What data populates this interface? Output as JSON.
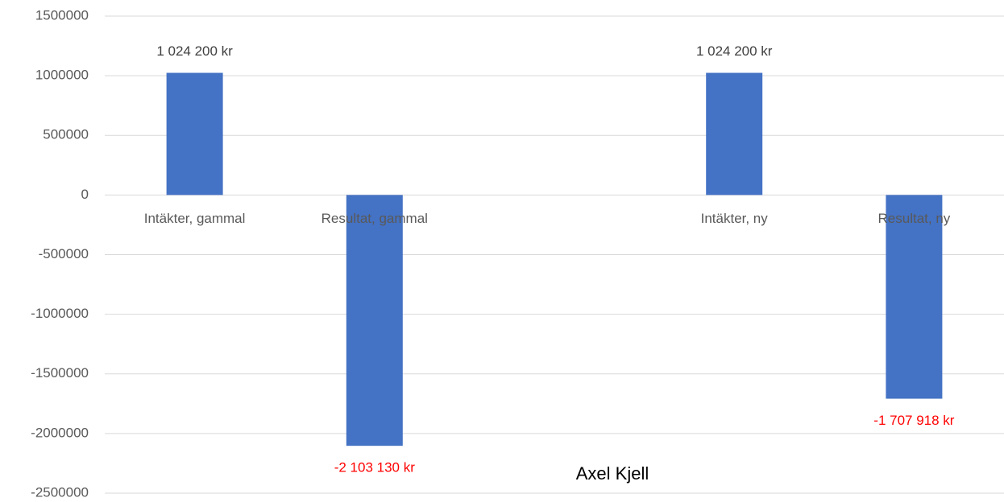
{
  "chart_data": {
    "type": "bar",
    "x_label": "Axel Kjell",
    "categories": [
      "Intäkter, gammal",
      "Resultat, gammal",
      null,
      "Intäkter, ny",
      "Resultat, ny"
    ],
    "values": [
      1024200,
      -2103130,
      null,
      1024200,
      -1707918
    ],
    "value_labels": [
      "1 024 200 kr",
      "-2 103 130 kr",
      null,
      "1 024 200 kr",
      "-1 707 918 kr"
    ],
    "color": "#4472c4",
    "label_color": "#404040",
    "negative_label_color": "#ff0000",
    "ylim": [
      -2500000,
      1500000
    ],
    "yticks": [
      -2500000,
      -2000000,
      -1500000,
      -1000000,
      -500000,
      0,
      500000,
      1000000,
      1500000
    ],
    "grid": true
  }
}
